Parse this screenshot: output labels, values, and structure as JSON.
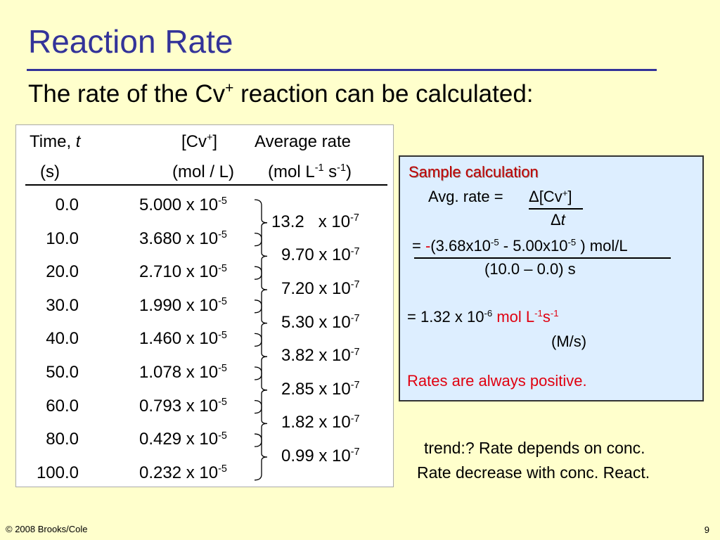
{
  "slide": {
    "title": "Reaction Rate",
    "subtitle": {
      "pre": "The rate of the Cv",
      "sup": "+",
      "post": " reaction can be calculated:"
    },
    "footer_left": "© 2008 Brooks/Cole",
    "page_number": "9"
  },
  "table": {
    "headers": {
      "time": "Time, ",
      "time_var": "t",
      "time_unit": "(s)",
      "conc_pre": "[Cv",
      "conc_sup": "+",
      "conc_post": "]",
      "conc_unit": "(mol / L)",
      "rate": "Average rate",
      "rate_unit_a": "(mol L",
      "rate_unit_sup1": "-1",
      "rate_unit_b": " s",
      "rate_unit_sup2": "-1",
      "rate_unit_c": ")"
    },
    "exp_conc": "-5",
    "exp_rate": "-7",
    "times": [
      "0.0",
      "10.0",
      "20.0",
      "30.0",
      "40.0",
      "50.0",
      "60.0",
      "80.0",
      "100.0"
    ],
    "concs": [
      "5.000 x 10",
      "3.680 x 10",
      "2.710 x 10",
      "1.990 x 10",
      "1.460 x 10",
      "1.078 x 10",
      "0.793 x 10",
      "0.429 x 10",
      "0.232 x 10"
    ],
    "rates": [
      "13.2   x 10",
      "9.70 x 10",
      "7.20 x 10",
      "5.30 x 10",
      "3.82 x 10",
      "2.85 x 10",
      "1.82 x 10",
      "0.99 x 10"
    ]
  },
  "sample": {
    "title": "Sample calculation",
    "avg_rate": "Avg. rate = ",
    "num_pre": "Δ[Cv",
    "num_sup": "+",
    "num_post": "]",
    "den": "Δ",
    "den_var": "t",
    "eq": "= ",
    "minus": "-",
    "expr_a": "(3.68x10",
    "expr_sup1": "-5",
    "expr_b": " - 5.00x10",
    "expr_sup2": "-5",
    "expr_c": " ) mol/L",
    "expr_den": "(10.0 – 0.0) s",
    "result_a": "= 1.32 x 10",
    "result_sup": "-6",
    "result_unit_a": " mol L",
    "result_unit_sup1": "-1",
    "result_unit_b": "s",
    "result_unit_sup2": "-1",
    "result_alt": "(M/s)",
    "note": "Rates are always positive."
  },
  "trend": {
    "line1": "trend:? Rate depends on conc.",
    "line2": "Rate decrease with conc. React."
  },
  "colors": {
    "title": "#333399",
    "background": "#FFFFCC",
    "emphasis": "#E00010",
    "calc_box": "#DDEEFF"
  }
}
